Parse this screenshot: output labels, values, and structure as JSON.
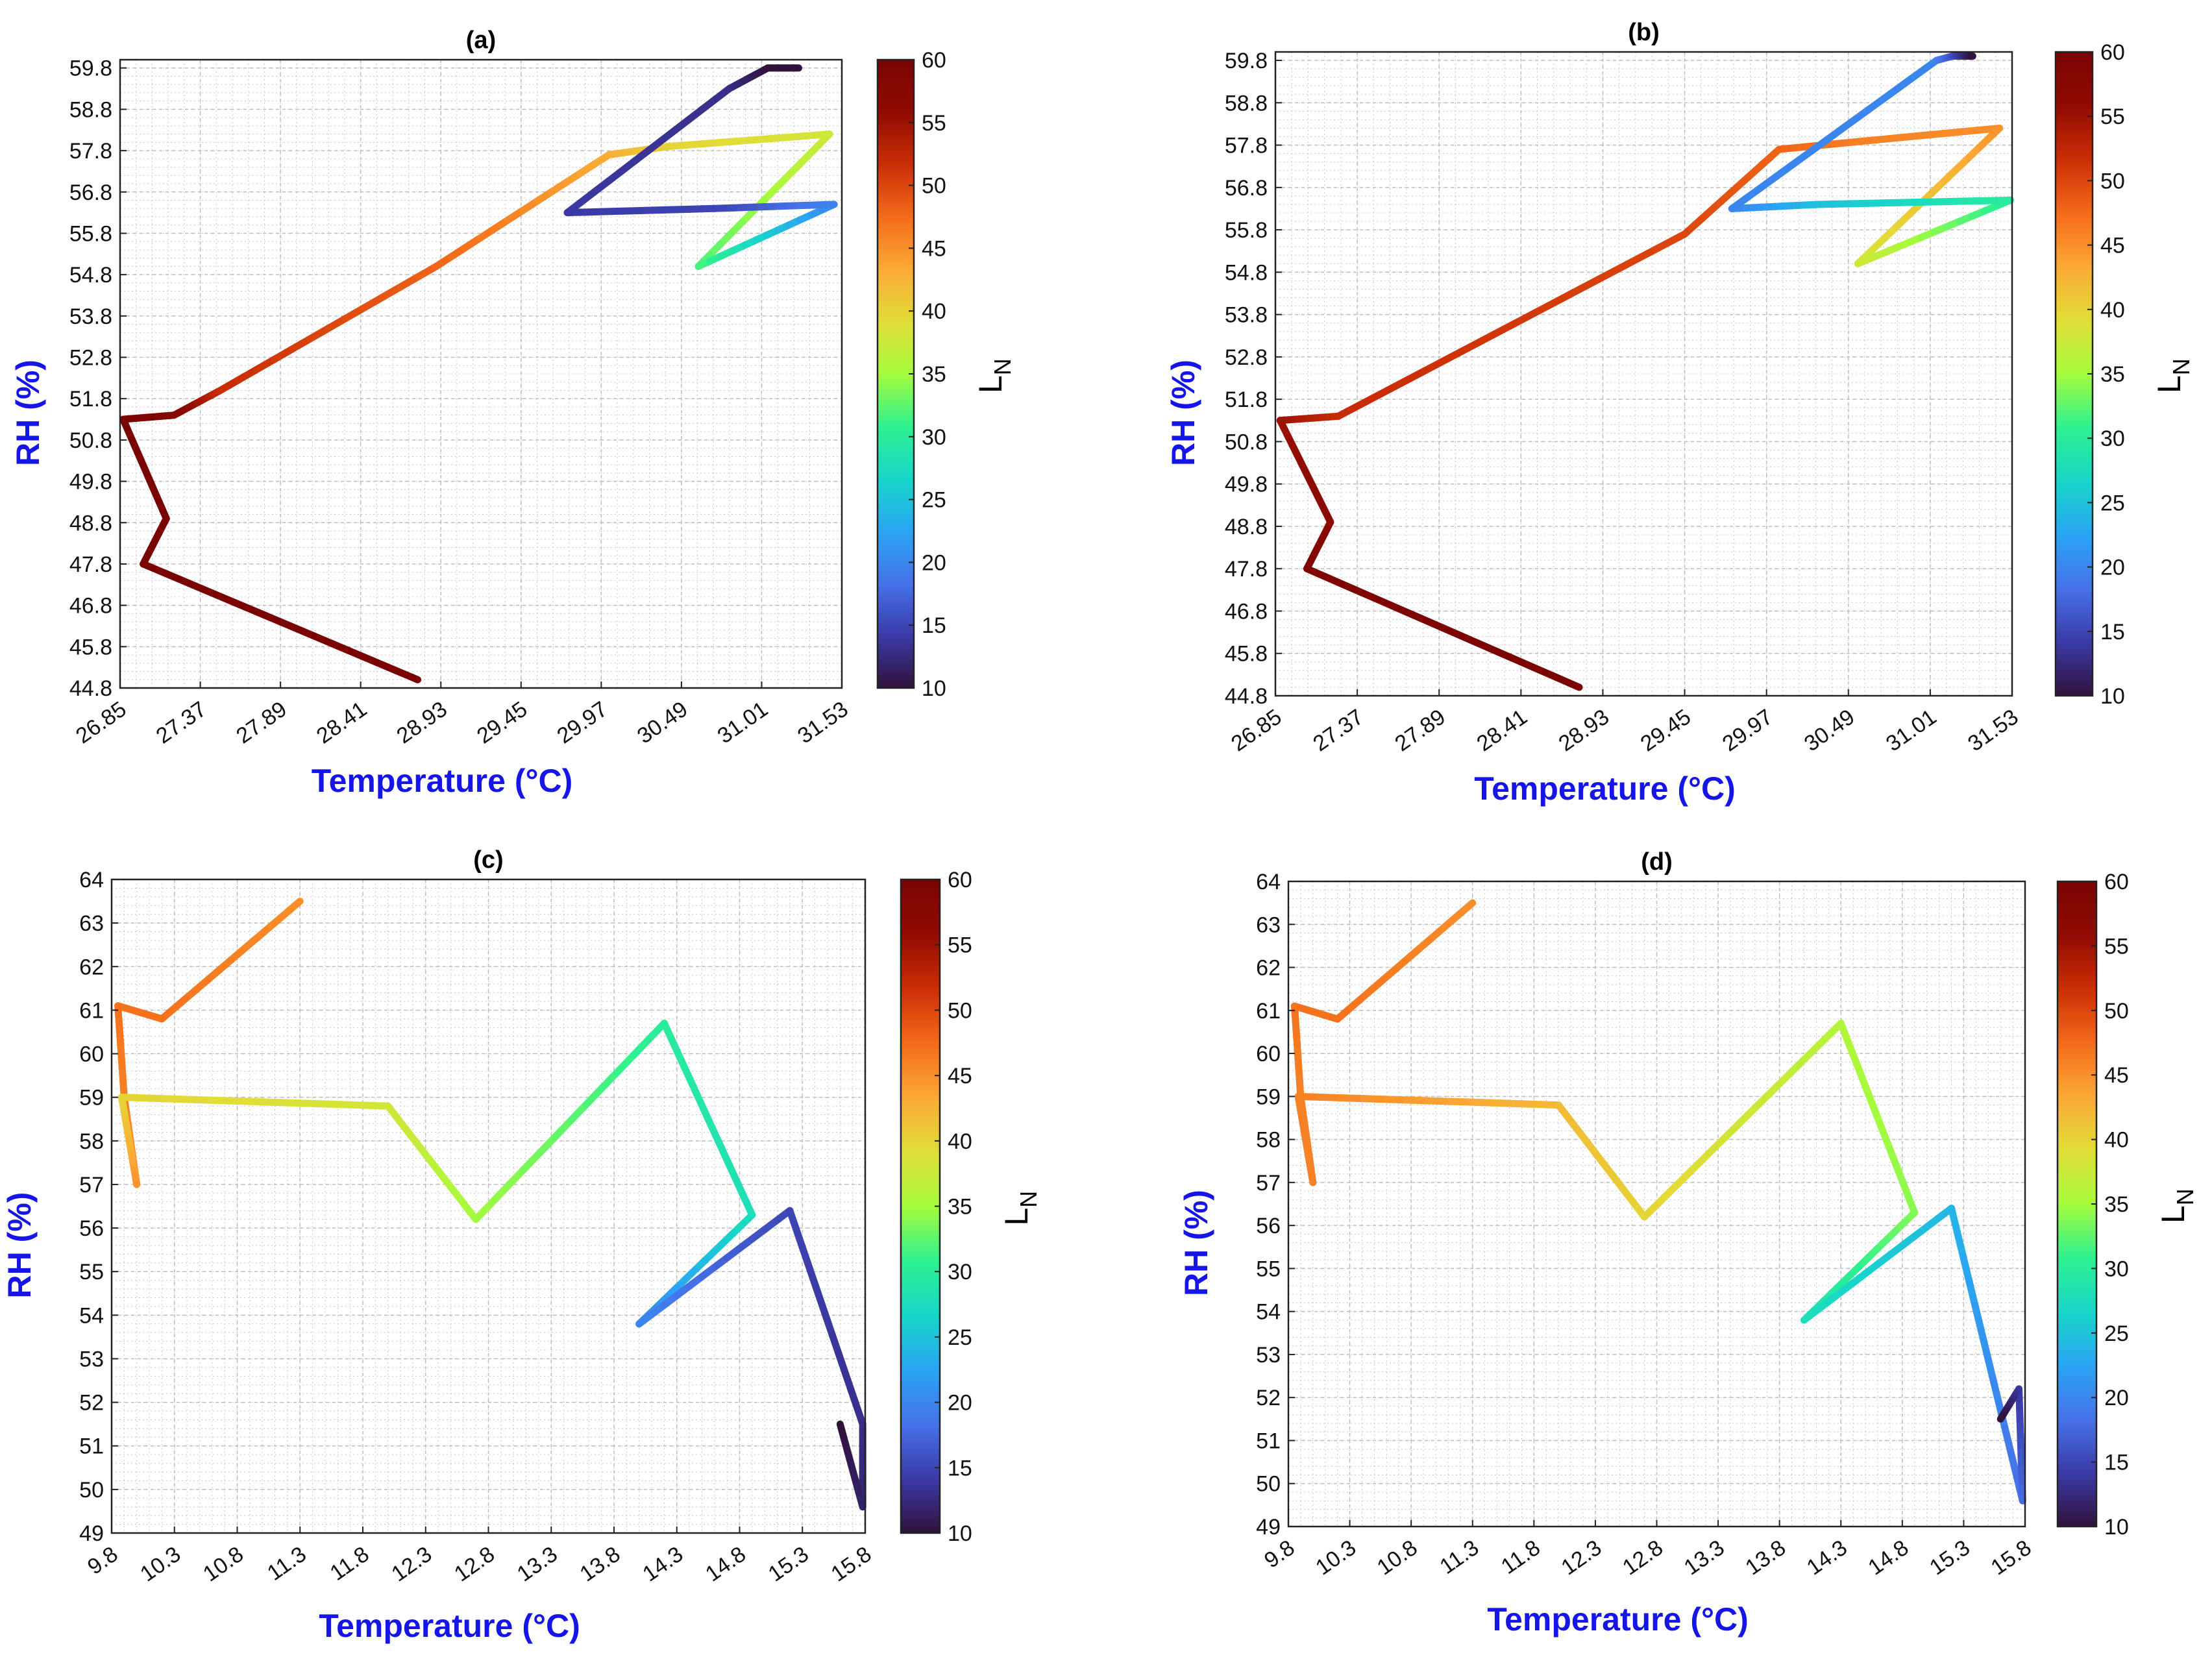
{
  "figure": "Four panels of RH versus Temperature trajectories colored by L_N",
  "colormap": {
    "name": "turbo",
    "stops": [
      "#30123b",
      "#3b3aa7",
      "#4672e9",
      "#2aa5f4",
      "#18d6c9",
      "#2ef190",
      "#a5fc3c",
      "#e1dd37",
      "#fba935",
      "#f46a1a",
      "#cb2e06",
      "#900b01",
      "#7a0403"
    ]
  },
  "chart_data": [
    {
      "panel": "(a)",
      "type": "line",
      "title": "(a)",
      "xlabel": "Temperature (°C)",
      "ylabel": "RH (%)",
      "colorbar_label_main": "L",
      "colorbar_label_sub": "N",
      "xlim": [
        26.85,
        31.53
      ],
      "ylim": [
        44.8,
        60.0
      ],
      "xticks": [
        "26.85",
        "27.37",
        "27.89",
        "28.41",
        "28.93",
        "29.45",
        "29.97",
        "30.49",
        "31.01",
        "31.53"
      ],
      "yticks": [
        "44.8",
        "45.8",
        "46.8",
        "47.8",
        "48.8",
        "49.8",
        "50.8",
        "51.8",
        "52.8",
        "53.8",
        "54.8",
        "55.8",
        "56.8",
        "57.8",
        "58.8",
        "59.8"
      ],
      "clim": [
        10,
        60
      ],
      "cticks": [
        "10",
        "15",
        "20",
        "25",
        "30",
        "35",
        "40",
        "45",
        "50",
        "55",
        "60"
      ],
      "points": [
        {
          "x": 28.78,
          "y": 45.0,
          "c": 60
        },
        {
          "x": 27.0,
          "y": 47.8,
          "c": 60
        },
        {
          "x": 27.15,
          "y": 48.9,
          "c": 60
        },
        {
          "x": 26.87,
          "y": 51.3,
          "c": 60
        },
        {
          "x": 27.2,
          "y": 51.4,
          "c": 58
        },
        {
          "x": 27.5,
          "y": 52.0,
          "c": 52
        },
        {
          "x": 28.9,
          "y": 55.0,
          "c": 48
        },
        {
          "x": 30.02,
          "y": 57.7,
          "c": 43
        },
        {
          "x": 30.4,
          "y": 57.9,
          "c": 40
        },
        {
          "x": 31.45,
          "y": 58.2,
          "c": 38
        },
        {
          "x": 30.6,
          "y": 55.0,
          "c": 32
        },
        {
          "x": 31.48,
          "y": 56.5,
          "c": 20
        },
        {
          "x": 30.7,
          "y": 56.4,
          "c": 15
        },
        {
          "x": 29.75,
          "y": 56.3,
          "c": 14
        },
        {
          "x": 30.8,
          "y": 59.3,
          "c": 13
        },
        {
          "x": 31.05,
          "y": 59.8,
          "c": 10
        },
        {
          "x": 31.25,
          "y": 59.8,
          "c": 10
        }
      ]
    },
    {
      "panel": "(b)",
      "type": "line",
      "title": "(b)",
      "xlabel": "Temperature (°C)",
      "ylabel": "RH (%)",
      "colorbar_label_main": "L",
      "colorbar_label_sub": "N",
      "xlim": [
        26.85,
        31.53
      ],
      "ylim": [
        44.8,
        60.0
      ],
      "xticks": [
        "26.85",
        "27.37",
        "27.89",
        "28.41",
        "28.93",
        "29.45",
        "29.97",
        "30.49",
        "31.01",
        "31.53"
      ],
      "yticks": [
        "44.8",
        "45.8",
        "46.8",
        "47.8",
        "48.8",
        "49.8",
        "50.8",
        "51.8",
        "52.8",
        "53.8",
        "54.8",
        "55.8",
        "56.8",
        "57.8",
        "58.8",
        "59.8"
      ],
      "clim": [
        10,
        60
      ],
      "cticks": [
        "10",
        "15",
        "20",
        "25",
        "30",
        "35",
        "40",
        "45",
        "50",
        "55",
        "60"
      ],
      "points": [
        {
          "x": 28.78,
          "y": 45.0,
          "c": 60
        },
        {
          "x": 27.05,
          "y": 47.8,
          "c": 59
        },
        {
          "x": 27.2,
          "y": 48.9,
          "c": 57
        },
        {
          "x": 26.88,
          "y": 51.3,
          "c": 55
        },
        {
          "x": 27.25,
          "y": 51.4,
          "c": 52
        },
        {
          "x": 29.45,
          "y": 55.7,
          "c": 50
        },
        {
          "x": 30.05,
          "y": 57.7,
          "c": 48
        },
        {
          "x": 30.6,
          "y": 57.9,
          "c": 46
        },
        {
          "x": 31.45,
          "y": 58.2,
          "c": 45
        },
        {
          "x": 30.55,
          "y": 55.0,
          "c": 38
        },
        {
          "x": 31.52,
          "y": 56.5,
          "c": 30
        },
        {
          "x": 30.3,
          "y": 56.4,
          "c": 25
        },
        {
          "x": 29.75,
          "y": 56.3,
          "c": 20
        },
        {
          "x": 31.05,
          "y": 59.8,
          "c": 20
        },
        {
          "x": 31.15,
          "y": 59.9,
          "c": 16
        },
        {
          "x": 31.28,
          "y": 59.9,
          "c": 10
        }
      ]
    },
    {
      "panel": "(c)",
      "type": "line",
      "title": "(c)",
      "xlabel": "Temperature (°C)",
      "ylabel": "RH (%)",
      "colorbar_label_main": "L",
      "colorbar_label_sub": "N",
      "xlim": [
        9.8,
        15.8
      ],
      "ylim": [
        49,
        64
      ],
      "xticks": [
        "9.8",
        "10.3",
        "10.8",
        "11.3",
        "11.8",
        "12.3",
        "12.8",
        "13.3",
        "13.8",
        "14.3",
        "14.8",
        "15.3",
        "15.8"
      ],
      "yticks": [
        "49",
        "50",
        "51",
        "52",
        "53",
        "54",
        "55",
        "56",
        "57",
        "58",
        "59",
        "60",
        "61",
        "62",
        "63",
        "64"
      ],
      "clim": [
        10,
        60
      ],
      "cticks": [
        "10",
        "15",
        "20",
        "25",
        "30",
        "35",
        "40",
        "45",
        "50",
        "55",
        "60"
      ],
      "points": [
        {
          "x": 11.3,
          "y": 63.5,
          "c": 45
        },
        {
          "x": 10.2,
          "y": 60.8,
          "c": 47
        },
        {
          "x": 9.85,
          "y": 61.1,
          "c": 47
        },
        {
          "x": 9.9,
          "y": 59.0,
          "c": 46
        },
        {
          "x": 10.0,
          "y": 57.0,
          "c": 45
        },
        {
          "x": 9.88,
          "y": 59.0,
          "c": 40
        },
        {
          "x": 12.0,
          "y": 58.8,
          "c": 38
        },
        {
          "x": 12.7,
          "y": 56.2,
          "c": 35
        },
        {
          "x": 14.2,
          "y": 60.7,
          "c": 30
        },
        {
          "x": 14.9,
          "y": 56.3,
          "c": 28
        },
        {
          "x": 14.0,
          "y": 53.8,
          "c": 20
        },
        {
          "x": 15.2,
          "y": 56.4,
          "c": 15
        },
        {
          "x": 15.78,
          "y": 51.5,
          "c": 13
        },
        {
          "x": 15.78,
          "y": 49.6,
          "c": 12
        },
        {
          "x": 15.6,
          "y": 51.5,
          "c": 10
        }
      ]
    },
    {
      "panel": "(d)",
      "type": "line",
      "title": "(d)",
      "xlabel": "Temperature (°C)",
      "ylabel": "RH (%)",
      "colorbar_label_main": "L",
      "colorbar_label_sub": "N",
      "xlim": [
        9.8,
        15.8
      ],
      "ylim": [
        49,
        64
      ],
      "xticks": [
        "9.8",
        "10.3",
        "10.8",
        "11.3",
        "11.8",
        "12.3",
        "12.8",
        "13.3",
        "13.8",
        "14.3",
        "14.8",
        "15.3",
        "15.8"
      ],
      "yticks": [
        "49",
        "50",
        "51",
        "52",
        "53",
        "54",
        "55",
        "56",
        "57",
        "58",
        "59",
        "60",
        "61",
        "62",
        "63",
        "64"
      ],
      "clim": [
        10,
        60
      ],
      "cticks": [
        "10",
        "15",
        "20",
        "25",
        "30",
        "35",
        "40",
        "45",
        "50",
        "55",
        "60"
      ],
      "points": [
        {
          "x": 11.3,
          "y": 63.5,
          "c": 45
        },
        {
          "x": 10.2,
          "y": 60.8,
          "c": 47
        },
        {
          "x": 9.85,
          "y": 61.1,
          "c": 47
        },
        {
          "x": 9.9,
          "y": 59.0,
          "c": 46
        },
        {
          "x": 10.0,
          "y": 57.0,
          "c": 46
        },
        {
          "x": 9.88,
          "y": 59.0,
          "c": 46
        },
        {
          "x": 12.0,
          "y": 58.8,
          "c": 42
        },
        {
          "x": 12.7,
          "y": 56.2,
          "c": 40
        },
        {
          "x": 14.3,
          "y": 60.7,
          "c": 36
        },
        {
          "x": 14.9,
          "y": 56.3,
          "c": 34
        },
        {
          "x": 14.0,
          "y": 53.8,
          "c": 28
        },
        {
          "x": 15.2,
          "y": 56.4,
          "c": 24
        },
        {
          "x": 15.78,
          "y": 49.6,
          "c": 18
        },
        {
          "x": 15.75,
          "y": 52.2,
          "c": 14
        },
        {
          "x": 15.6,
          "y": 51.5,
          "c": 10
        }
      ]
    }
  ]
}
